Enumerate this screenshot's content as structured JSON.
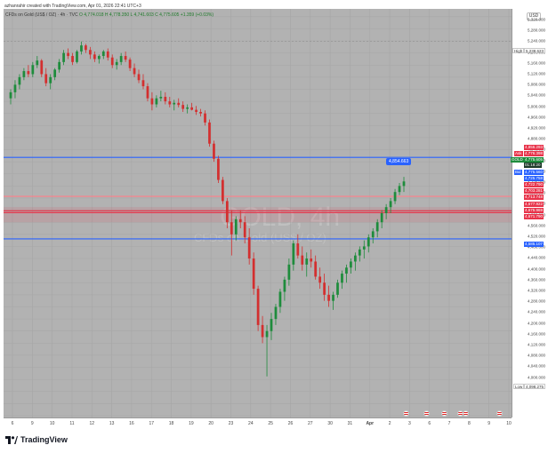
{
  "attribution": "azhanrahir created with TradingView.com, Apr 01, 2026 22:41 UTC+3",
  "legend": {
    "symbol": "CFDs on Gold (US$ / OZ) · 4h · TVC",
    "ohlc": "O 4,774.018  H 4,778.350  L 4,741.603  C 4,775.605  +1.359 (+0.03%)"
  },
  "currency": "USD",
  "watermark": {
    "main": "GOLD, 4h",
    "sub": "CFDs on Gold (US$ / OZ)"
  },
  "price_axis": {
    "ticks": [
      "5,320.000",
      "5,280.000",
      "5,240.000",
      "5,200.000",
      "5,160.000",
      "5,120.000",
      "5,080.000",
      "5,040.000",
      "5,000.000",
      "4,960.000",
      "4,920.000",
      "4,880.000",
      "4,840.000",
      "4,800.000",
      "4,760.000",
      "4,720.000",
      "4,680.000",
      "4,640.000",
      "4,600.000",
      "4,560.000",
      "4,520.000",
      "4,480.000",
      "4,440.000",
      "4,400.000",
      "4,360.000",
      "4,320.000",
      "4,280.000",
      "4,240.000",
      "4,200.000",
      "4,160.000",
      "4,120.000",
      "4,080.000",
      "4,040.000",
      "4,000.000"
    ],
    "tags": {
      "high_label": "High",
      "high_value": "5,238.623",
      "low_label": "Low",
      "low_value": "4,098.275",
      "ask_label": "Ask",
      "ask_value": "4,776.398",
      "gold_label": "GOLD",
      "gold_value": "4,775.605",
      "countdown": "01:18:20",
      "bid_label": "Bid",
      "bid_value": "4,775.560",
      "line1": "4,856.293",
      "line2": "4,725.758",
      "line3": "4,722.790",
      "line4": "4,703.281",
      "line5": "4,713.748",
      "line6": "4,677.922",
      "line7": "4,675.969",
      "line8": "4,671.790",
      "line9": "4,585.107"
    }
  },
  "price_bubble": "4,854.663",
  "time_axis": [
    "6",
    "9",
    "10",
    "11",
    "12",
    "13",
    "16",
    "17",
    "18",
    "19",
    "20",
    "23",
    "24",
    "25",
    "26",
    "27",
    "30",
    "31",
    "Apr",
    "2",
    "3",
    "6",
    "7",
    "8",
    "9",
    "10"
  ],
  "brand": "TradingView",
  "chart_data": {
    "type": "candlestick",
    "timeframe": "4h",
    "ylim": [
      4000,
      5340
    ],
    "high": 5238.623,
    "low": 4098.275,
    "last_close": 4775.605,
    "horizontal_lines": [
      {
        "value": 4854.663,
        "color": "#2962ff"
      },
      {
        "value": 4677.922,
        "color": "#e8334a"
      },
      {
        "value": 4671.79,
        "color": "#e8334a"
      },
      {
        "value": 4725.758,
        "color": "#ff7f8a"
      },
      {
        "value": 4585.107,
        "color": "#2962ff"
      }
    ],
    "candles": [
      [
        5050,
        5080,
        5030,
        5070
      ],
      [
        5070,
        5110,
        5050,
        5095
      ],
      [
        5095,
        5130,
        5080,
        5120
      ],
      [
        5120,
        5150,
        5110,
        5140
      ],
      [
        5140,
        5160,
        5120,
        5130
      ],
      [
        5130,
        5170,
        5120,
        5160
      ],
      [
        5160,
        5190,
        5150,
        5175
      ],
      [
        5175,
        5180,
        5120,
        5130
      ],
      [
        5130,
        5150,
        5090,
        5100
      ],
      [
        5100,
        5130,
        5080,
        5120
      ],
      [
        5120,
        5150,
        5110,
        5145
      ],
      [
        5145,
        5180,
        5135,
        5170
      ],
      [
        5170,
        5210,
        5160,
        5200
      ],
      [
        5200,
        5215,
        5180,
        5190
      ],
      [
        5190,
        5200,
        5160,
        5170
      ],
      [
        5170,
        5210,
        5165,
        5205
      ],
      [
        5205,
        5238,
        5195,
        5225
      ],
      [
        5225,
        5230,
        5200,
        5210
      ],
      [
        5210,
        5220,
        5180,
        5195
      ],
      [
        5195,
        5205,
        5170,
        5180
      ],
      [
        5180,
        5195,
        5165,
        5190
      ],
      [
        5190,
        5210,
        5180,
        5205
      ],
      [
        5205,
        5215,
        5175,
        5185
      ],
      [
        5185,
        5195,
        5150,
        5160
      ],
      [
        5160,
        5180,
        5145,
        5170
      ],
      [
        5170,
        5200,
        5160,
        5190
      ],
      [
        5190,
        5205,
        5170,
        5178
      ],
      [
        5178,
        5185,
        5140,
        5150
      ],
      [
        5150,
        5165,
        5120,
        5130
      ],
      [
        5130,
        5145,
        5100,
        5110
      ],
      [
        5110,
        5130,
        5080,
        5090
      ],
      [
        5090,
        5100,
        5040,
        5050
      ],
      [
        5050,
        5070,
        5010,
        5030
      ],
      [
        5030,
        5060,
        5020,
        5050
      ],
      [
        5050,
        5075,
        5040,
        5055
      ],
      [
        5055,
        5070,
        5030,
        5040
      ],
      [
        5040,
        5055,
        5020,
        5030
      ],
      [
        5030,
        5045,
        5010,
        5035
      ],
      [
        5035,
        5050,
        5020,
        5028
      ],
      [
        5028,
        5040,
        5005,
        5015
      ],
      [
        5015,
        5030,
        5000,
        5020
      ],
      [
        5020,
        5035,
        5010,
        5012
      ],
      [
        5012,
        5025,
        4995,
        5005
      ],
      [
        5005,
        5015,
        4990,
        5000
      ],
      [
        5000,
        5010,
        4960,
        4970
      ],
      [
        4970,
        4980,
        4890,
        4900
      ],
      [
        4900,
        4910,
        4840,
        4850
      ],
      [
        4850,
        4860,
        4770,
        4780
      ],
      [
        4780,
        4790,
        4700,
        4710
      ],
      [
        4710,
        4720,
        4620,
        4640
      ],
      [
        4640,
        4680,
        4530,
        4600
      ],
      [
        4600,
        4660,
        4580,
        4650
      ],
      [
        4650,
        4680,
        4620,
        4640
      ],
      [
        4640,
        4660,
        4570,
        4590
      ],
      [
        4590,
        4620,
        4500,
        4520
      ],
      [
        4520,
        4540,
        4400,
        4420
      ],
      [
        4420,
        4430,
        4280,
        4300
      ],
      [
        4300,
        4330,
        4240,
        4260
      ],
      [
        4260,
        4300,
        4130,
        4280
      ],
      [
        4280,
        4340,
        4250,
        4320
      ],
      [
        4320,
        4370,
        4300,
        4360
      ],
      [
        4360,
        4420,
        4340,
        4410
      ],
      [
        4410,
        4460,
        4380,
        4450
      ],
      [
        4450,
        4520,
        4430,
        4500
      ],
      [
        4500,
        4580,
        4480,
        4570
      ],
      [
        4570,
        4600,
        4520,
        4530
      ],
      [
        4530,
        4560,
        4480,
        4500
      ],
      [
        4500,
        4540,
        4460,
        4520
      ],
      [
        4520,
        4550,
        4490,
        4510
      ],
      [
        4510,
        4530,
        4450,
        4460
      ],
      [
        4460,
        4490,
        4420,
        4440
      ],
      [
        4440,
        4470,
        4380,
        4400
      ],
      [
        4400,
        4430,
        4360,
        4380
      ],
      [
        4380,
        4410,
        4350,
        4400
      ],
      [
        4400,
        4450,
        4390,
        4440
      ],
      [
        4440,
        4480,
        4420,
        4470
      ],
      [
        4470,
        4500,
        4440,
        4490
      ],
      [
        4490,
        4520,
        4470,
        4510
      ],
      [
        4510,
        4540,
        4480,
        4530
      ],
      [
        4530,
        4560,
        4510,
        4550
      ],
      [
        4550,
        4580,
        4520,
        4560
      ],
      [
        4560,
        4600,
        4540,
        4590
      ],
      [
        4590,
        4620,
        4570,
        4610
      ],
      [
        4610,
        4650,
        4590,
        4640
      ],
      [
        4640,
        4680,
        4620,
        4670
      ],
      [
        4670,
        4700,
        4650,
        4690
      ],
      [
        4690,
        4720,
        4670,
        4710
      ],
      [
        4710,
        4750,
        4700,
        4740
      ],
      [
        4740,
        4770,
        4730,
        4760
      ],
      [
        4760,
        4790,
        4740,
        4775
      ]
    ]
  },
  "events_count": 6
}
